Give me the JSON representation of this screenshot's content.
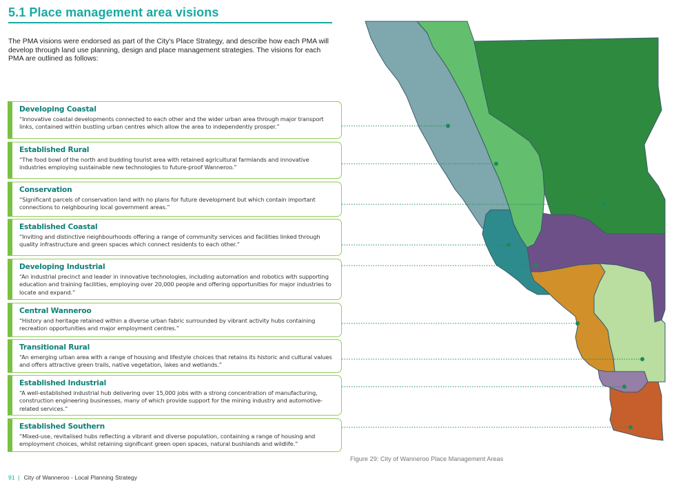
{
  "heading": "5.1 Place management area visions",
  "intro": "The PMA visions were endorsed as part of the City's Place Strategy, and describe how each PMA will develop through land use planning, design and place management strategies. The visions for each PMA are outlined as follows:",
  "pmas": [
    {
      "name": "Developing Coastal",
      "vision": "“Innovative coastal developments connected to each other and the wider urban area through major transport links, contained within bustling urban centres which allow the area to independently prosper.”",
      "color": "#7ea8ad"
    },
    {
      "name": "Established Rural",
      "vision": "“The food bowl of the north and budding tourist area with retained agricultural farmlands and innovative industries employing sustainable new technologies to future-proof Wanneroo.”",
      "color": "#63bf6e"
    },
    {
      "name": "Conservation",
      "vision": "“Significant parcels of conservation land with no plans for future development but which contain important connections to neighbouring local government areas.”",
      "color": "#2e8a3e"
    },
    {
      "name": "Established Coastal",
      "vision": "“Inviting and distinctive neighbourhoods offering a range of community services and facilities linked through quality infrastructure and green spaces which connect residents to each other.”",
      "color": "#2e8b8d"
    },
    {
      "name": "Developing Industrial",
      "vision": "“An industrial precinct and leader in innovative technologies, including automation and robotics with supporting education and training facilities, employing over 20,000 people and offering opportunities for major industries to locate and expand.”",
      "color": "#6e5088"
    },
    {
      "name": "Central Wanneroo",
      "vision": "“History and heritage retained within a diverse urban fabric surrounded by vibrant activity hubs containing recreation opportunities and major employment centres.”",
      "color": "#d1902a"
    },
    {
      "name": "Transitional Rural",
      "vision": "“An emerging urban area with a range of housing and lifestyle choices that retains its historic and cultural values and offers attractive green trails, native vegetation, lakes and wetlands.”",
      "color": "#b9dea0"
    },
    {
      "name": "Established Industrial",
      "vision": "“A well-established industrial hub delivering over 15,000 jobs with a strong concentration of manufacturing, construction engineering businesses, many of which provide support for the mining industry and automotive-related services.”",
      "color": "#957fa6"
    },
    {
      "name": "Established Southern",
      "vision": "“Mixed-use, revitalised hubs reflecting a vibrant and diverse population, containing a range of housing and employment choices, whilst retaining significant green open spaces, natural bushlands and wildlife.”",
      "color": "#c75f2c"
    }
  ],
  "caption": "Figure 29: City of Wanneroo Place Management Areas",
  "footer": {
    "page_number": "91",
    "separator": "|",
    "document_title": "City of Wanneroo - Local Planning Strategy"
  },
  "colors": {
    "heading_teal": "#17a9a1",
    "card_border_green": "#7bc043",
    "pma_name_teal": "#0f7f78",
    "leader_dot": "#1b8a5a"
  }
}
